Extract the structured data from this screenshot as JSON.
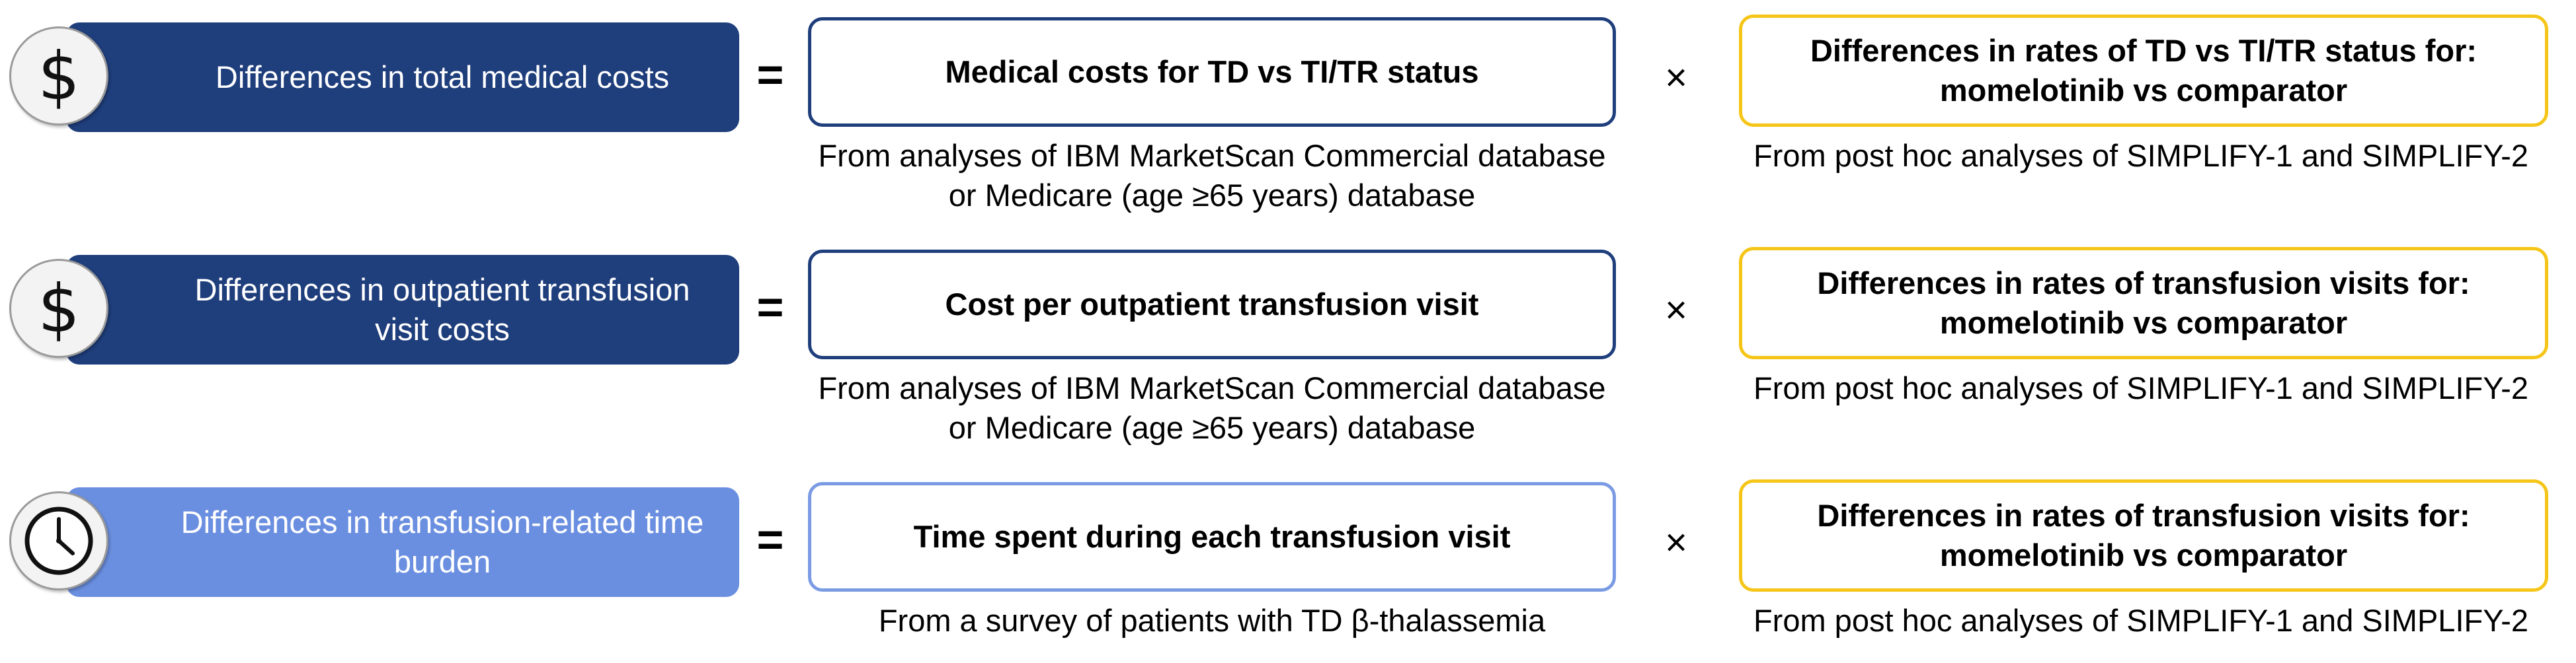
{
  "rows": [
    {
      "icon": "dollar-icon",
      "label": "Differences in total medical costs",
      "equals": "=",
      "middle_box": "Medical costs for TD vs TI/TR status",
      "middle_caption": "From analyses of IBM MarketScan Commercial database or Medicare (age ≥65 years) database",
      "times": "×",
      "right_box": "Differences in rates of TD vs TI/TR status for: momelotinib  vs comparator",
      "right_caption": "From post hoc analyses of SIMPLIFY-1 and SIMPLIFY-2"
    },
    {
      "icon": "dollar-icon",
      "label": "Differences in outpatient transfusion visit costs",
      "equals": "=",
      "middle_box": "Cost per outpatient transfusion visit",
      "middle_caption": "From analyses of IBM MarketScan Commercial database or Medicare (age ≥65 years) database",
      "times": "×",
      "right_box": "Differences in rates of transfusion visits for: momelotinib  vs comparator",
      "right_caption": "From post hoc analyses of SIMPLIFY-1  and SIMPLIFY-2"
    },
    {
      "icon": "clock-icon",
      "label": "Differences in transfusion-related time burden",
      "equals": "=",
      "middle_box": "Time spent during each transfusion visit",
      "middle_caption": "From a survey  of patients with TD β-thalassemia",
      "times": "×",
      "right_box": "Differences in rates of transfusion visits for: momelotinib  vs comparator",
      "right_caption": "From post hoc analyses of SIMPLIFY-1  and SIMPLIFY-2"
    }
  ],
  "colors": {
    "dark_blue": "#1f3e7c",
    "light_blue": "#6b8fe0",
    "yellow": "#f5c518"
  }
}
